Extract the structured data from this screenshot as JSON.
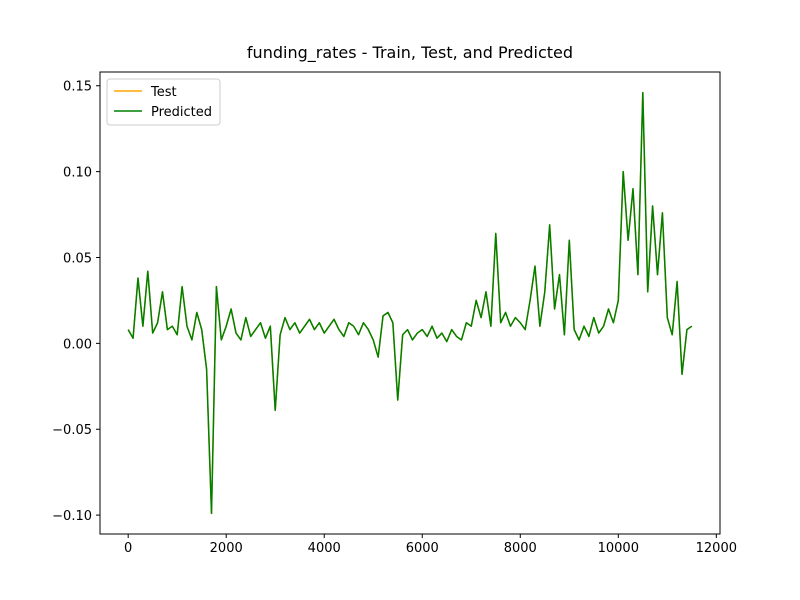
{
  "chart_data": {
    "type": "line",
    "title": "funding_rates - Train, Test, and Predicted",
    "x": [
      0,
      100,
      200,
      300,
      400,
      500,
      600,
      700,
      800,
      900,
      1000,
      1100,
      1200,
      1300,
      1400,
      1500,
      1600,
      1700,
      1800,
      1900,
      2000,
      2100,
      2200,
      2300,
      2400,
      2500,
      2600,
      2700,
      2800,
      2900,
      3000,
      3100,
      3200,
      3300,
      3400,
      3500,
      3600,
      3700,
      3800,
      3900,
      4000,
      4100,
      4200,
      4300,
      4400,
      4500,
      4600,
      4700,
      4800,
      4900,
      5000,
      5100,
      5200,
      5300,
      5400,
      5500,
      5600,
      5700,
      5800,
      5900,
      6000,
      6100,
      6200,
      6300,
      6400,
      6500,
      6600,
      6700,
      6800,
      6900,
      7000,
      7100,
      7200,
      7300,
      7400,
      7500,
      7600,
      7700,
      7800,
      7900,
      8000,
      8100,
      8200,
      8300,
      8400,
      8500,
      8600,
      8700,
      8800,
      8900,
      9000,
      9100,
      9200,
      9300,
      9400,
      9500,
      9600,
      9700,
      9800,
      9900,
      10000,
      10100,
      10200,
      10300,
      10400,
      10500,
      10600,
      10700,
      10800,
      10900,
      11000,
      11100,
      11200,
      11300,
      11400,
      11500
    ],
    "series": [
      {
        "name": "Test",
        "color": "#ffa500",
        "values": [
          0.008,
          0.003,
          0.038,
          0.01,
          0.042,
          0.006,
          0.012,
          0.03,
          0.008,
          0.01,
          0.005,
          0.033,
          0.01,
          0.002,
          0.018,
          0.008,
          -0.015,
          -0.099,
          0.033,
          0.002,
          0.01,
          0.02,
          0.006,
          0.002,
          0.015,
          0.004,
          0.008,
          0.012,
          0.003,
          0.01,
          -0.039,
          0.005,
          0.015,
          0.008,
          0.012,
          0.006,
          0.01,
          0.014,
          0.008,
          0.012,
          0.006,
          0.01,
          0.014,
          0.008,
          0.004,
          0.012,
          0.01,
          0.005,
          0.012,
          0.008,
          0.002,
          -0.008,
          0.016,
          0.018,
          0.012,
          -0.033,
          0.005,
          0.008,
          0.002,
          0.006,
          0.008,
          0.004,
          0.01,
          0.003,
          0.006,
          0.001,
          0.008,
          0.004,
          0.002,
          0.012,
          0.01,
          0.025,
          0.015,
          0.03,
          0.01,
          0.064,
          0.012,
          0.018,
          0.01,
          0.015,
          0.012,
          0.008,
          0.025,
          0.045,
          0.01,
          0.03,
          0.069,
          0.02,
          0.04,
          0.005,
          0.06,
          0.008,
          0.002,
          0.01,
          0.004,
          0.015,
          0.006,
          0.01,
          0.02,
          0.012,
          0.025,
          0.1,
          0.06,
          0.09,
          0.04,
          0.146,
          0.03,
          0.08,
          0.04,
          0.076,
          0.015,
          0.005,
          0.036,
          -0.018,
          0.008,
          0.01
        ]
      },
      {
        "name": "Predicted",
        "color": "#008000",
        "values": [
          0.008,
          0.003,
          0.038,
          0.01,
          0.042,
          0.006,
          0.012,
          0.03,
          0.008,
          0.01,
          0.005,
          0.033,
          0.01,
          0.002,
          0.018,
          0.008,
          -0.015,
          -0.099,
          0.033,
          0.002,
          0.01,
          0.02,
          0.006,
          0.002,
          0.015,
          0.004,
          0.008,
          0.012,
          0.003,
          0.01,
          -0.039,
          0.005,
          0.015,
          0.008,
          0.012,
          0.006,
          0.01,
          0.014,
          0.008,
          0.012,
          0.006,
          0.01,
          0.014,
          0.008,
          0.004,
          0.012,
          0.01,
          0.005,
          0.012,
          0.008,
          0.002,
          -0.008,
          0.016,
          0.018,
          0.012,
          -0.033,
          0.005,
          0.008,
          0.002,
          0.006,
          0.008,
          0.004,
          0.01,
          0.003,
          0.006,
          0.001,
          0.008,
          0.004,
          0.002,
          0.012,
          0.01,
          0.025,
          0.015,
          0.03,
          0.01,
          0.064,
          0.012,
          0.018,
          0.01,
          0.015,
          0.012,
          0.008,
          0.025,
          0.045,
          0.01,
          0.03,
          0.069,
          0.02,
          0.04,
          0.005,
          0.06,
          0.008,
          0.002,
          0.01,
          0.004,
          0.015,
          0.006,
          0.01,
          0.02,
          0.012,
          0.025,
          0.1,
          0.06,
          0.09,
          0.04,
          0.146,
          0.03,
          0.08,
          0.04,
          0.076,
          0.015,
          0.005,
          0.036,
          -0.018,
          0.008,
          0.01
        ]
      }
    ],
    "xlim": [
      -575,
      12075
    ],
    "ylim": [
      -0.111,
      0.158
    ],
    "xticks": [
      0,
      2000,
      4000,
      6000,
      8000,
      10000,
      12000
    ],
    "yticks": [
      {
        "value": -0.1,
        "label": "−0.10"
      },
      {
        "value": -0.05,
        "label": "−0.05"
      },
      {
        "value": 0,
        "label": "0.00"
      },
      0.05,
      {
        "value": 0.1,
        "label": "0.10"
      },
      0.15
    ],
    "legend": "upper left"
  }
}
